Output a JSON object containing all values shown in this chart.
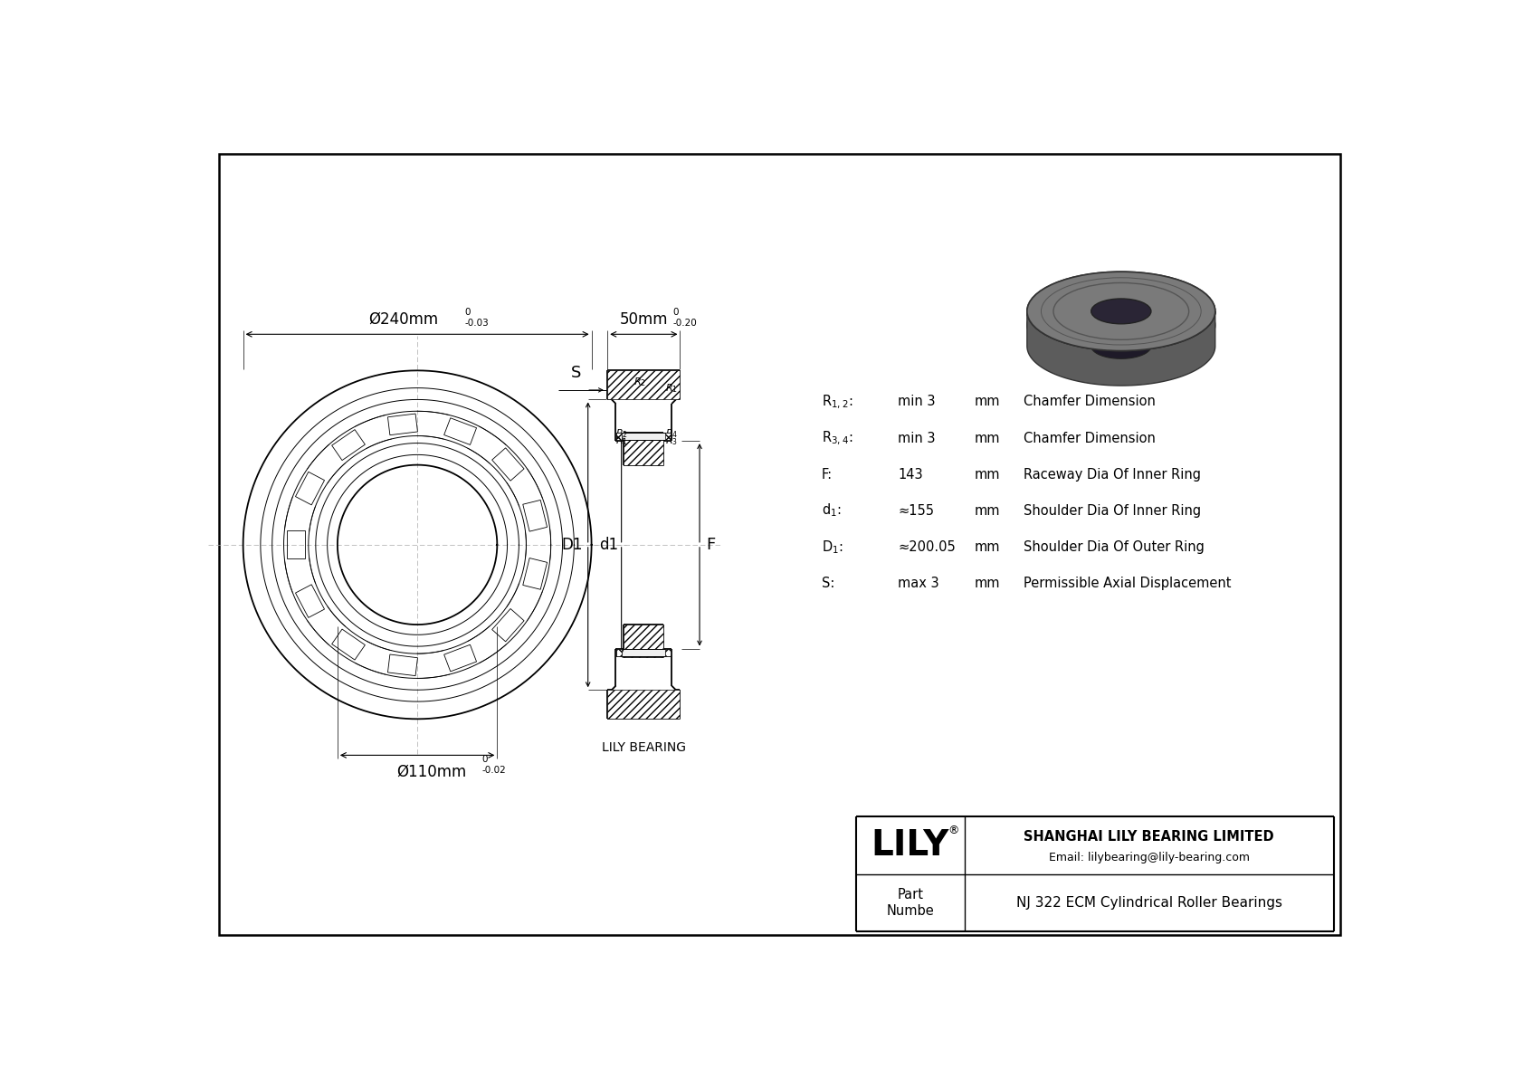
{
  "bg_color": "#ffffff",
  "line_color": "#000000",
  "title": "NJ 322 ECM Cylindrical Roller Bearings",
  "company": "SHANGHAI LILY BEARING LIMITED",
  "email": "Email: lilybearing@lily-bearing.com",
  "logo": "LILY",
  "part_label": "Part\nNumbe",
  "outer_dim_label": "Ø240mm",
  "outer_dim_tol_upper": "0",
  "outer_dim_tol_lower": "-0.03",
  "inner_dim_label": "Ø110mm",
  "inner_dim_tol_upper": "0",
  "inner_dim_tol_lower": "-0.02",
  "width_dim_label": "50mm",
  "width_dim_tol_upper": "0",
  "width_dim_tol_lower": "-0.20",
  "params": [
    {
      "symbol": "R$_{1,2}$:",
      "value": "min 3",
      "unit": "mm",
      "desc": "Chamfer Dimension"
    },
    {
      "symbol": "R$_{3,4}$:",
      "value": "min 3",
      "unit": "mm",
      "desc": "Chamfer Dimension"
    },
    {
      "symbol": "F:",
      "value": "143",
      "unit": "mm",
      "desc": "Raceway Dia Of Inner Ring"
    },
    {
      "symbol": "d$_{1}$:",
      "value": "≈155",
      "unit": "mm",
      "desc": "Shoulder Dia Of Inner Ring"
    },
    {
      "symbol": "D$_{1}$:",
      "value": "≈200.05",
      "unit": "mm",
      "desc": "Shoulder Dia Of Outer Ring"
    },
    {
      "symbol": "S:",
      "value": "max 3",
      "unit": "mm",
      "desc": "Permissible Axial Displacement"
    }
  ],
  "lily_bearing_label": "LILY BEARING"
}
